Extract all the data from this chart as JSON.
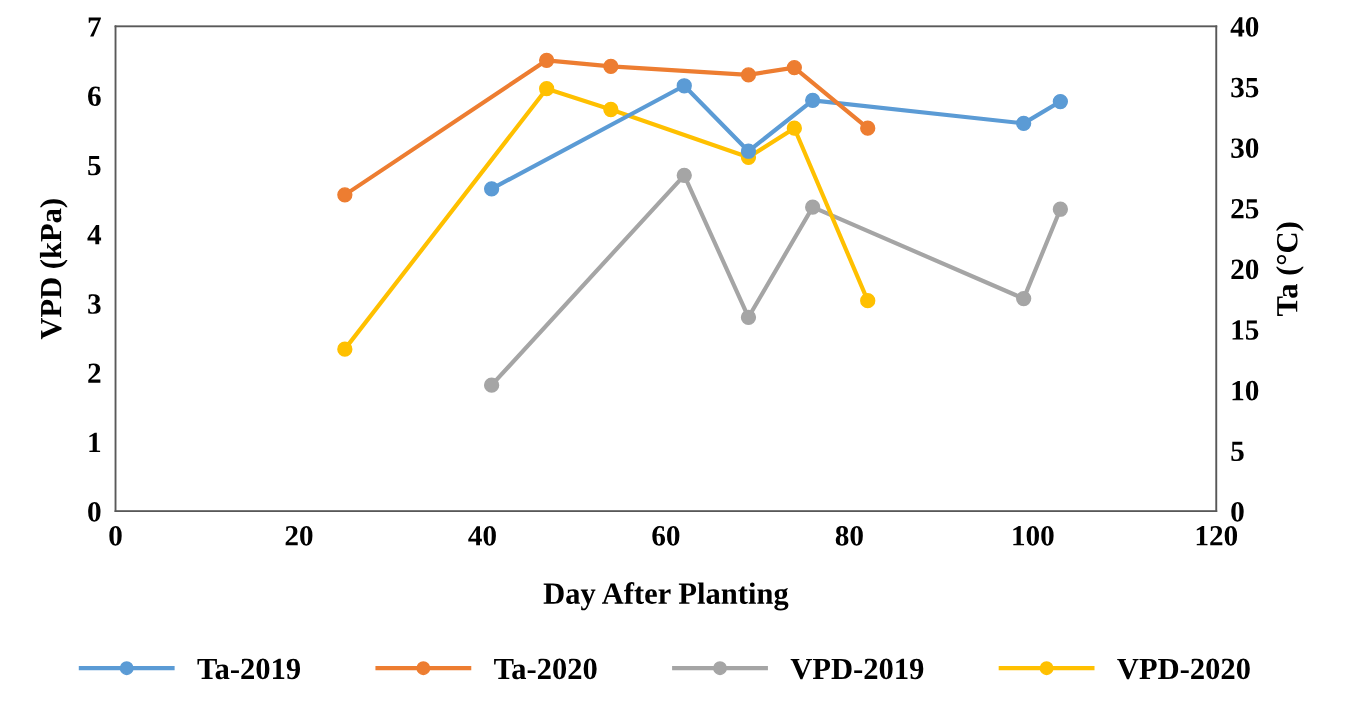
{
  "chart_data": {
    "type": "line",
    "xlabel": "Day After Planting",
    "ylabel": "VPD (kPa)",
    "y2label": "Ta (°C)",
    "xlim": [
      0,
      120
    ],
    "xticks": [
      0,
      20,
      40,
      60,
      80,
      100,
      120
    ],
    "ylim": [
      0,
      7
    ],
    "yticks": [
      0,
      1,
      2,
      3,
      4,
      5,
      6,
      7
    ],
    "y2lim": [
      0,
      40
    ],
    "y2ticks": [
      0,
      5,
      10,
      15,
      20,
      25,
      30,
      35,
      40
    ],
    "grid": false,
    "legend": "bottom",
    "marker": "circle",
    "line_style": "solid",
    "series": [
      {
        "name": "Ta-2019",
        "color": "#5b9bd5",
        "axis": "y2",
        "x": [
          41,
          62,
          69,
          76,
          99,
          103
        ],
        "values": [
          26.6,
          35.1,
          29.7,
          33.9,
          32.0,
          33.8
        ]
      },
      {
        "name": "Ta-2020",
        "color": "#ed7d31",
        "axis": "y2",
        "x": [
          25,
          47,
          54,
          69,
          74,
          82
        ],
        "values": [
          26.1,
          37.2,
          36.7,
          36.0,
          36.6,
          31.6
        ]
      },
      {
        "name": "VPD-2019",
        "color": "#a5a5a5",
        "x": [
          41,
          62,
          69,
          76,
          99,
          103
        ],
        "values": [
          1.82,
          4.85,
          2.8,
          4.39,
          3.07,
          4.36
        ]
      },
      {
        "name": "VPD-2020",
        "color": "#ffc000",
        "x": [
          25,
          47,
          54,
          69,
          74,
          82
        ],
        "values": [
          2.34,
          6.1,
          5.8,
          5.11,
          5.53,
          3.04
        ]
      }
    ]
  }
}
